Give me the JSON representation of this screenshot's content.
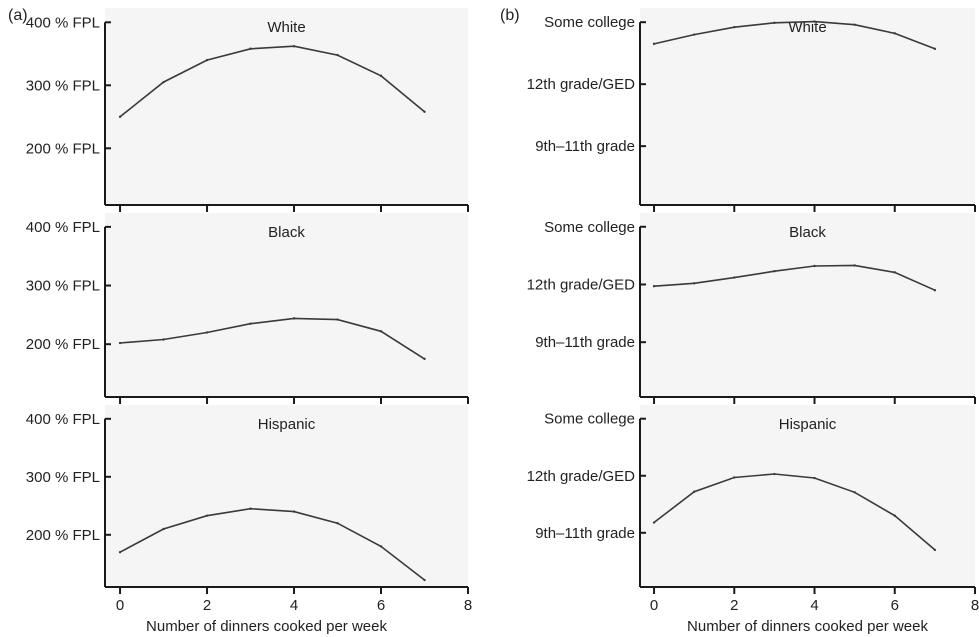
{
  "figure": {
    "panel_labels": [
      "(a)",
      "(b)"
    ],
    "xlabel": "Number of dinners cooked per week"
  },
  "chart_data": [
    {
      "type": "line",
      "panel": "(a)",
      "title": "White",
      "xlabel": "",
      "x": [
        0,
        1,
        2,
        3,
        4,
        5,
        6,
        7
      ],
      "series": [
        {
          "values": [
            250,
            305,
            340,
            358,
            362,
            348,
            315,
            258
          ]
        }
      ],
      "yticks": [
        200,
        300,
        400
      ],
      "yticklabels": [
        "200 % FPL",
        "300 % FPL",
        "400 % FPL"
      ],
      "xticks": [
        0,
        2,
        4,
        6,
        8
      ],
      "xticklabels": [
        "",
        "",
        "",
        "",
        ""
      ],
      "ylim": [
        110,
        410
      ],
      "xlim": [
        -0.3,
        8
      ]
    },
    {
      "type": "line",
      "panel": "(a)",
      "title": "Black",
      "xlabel": "",
      "x": [
        0,
        1,
        2,
        3,
        4,
        5,
        6,
        7
      ],
      "series": [
        {
          "values": [
            202,
            208,
            220,
            235,
            244,
            242,
            222,
            175
          ]
        }
      ],
      "yticks": [
        200,
        300,
        400
      ],
      "yticklabels": [
        "200 % FPL",
        "300 % FPL",
        "400 % FPL"
      ],
      "xticks": [
        0,
        2,
        4,
        6,
        8
      ],
      "xticklabels": [
        "",
        "",
        "",
        "",
        ""
      ],
      "ylim": [
        110,
        410
      ],
      "xlim": [
        -0.3,
        8
      ]
    },
    {
      "type": "line",
      "panel": "(a)",
      "title": "Hispanic",
      "xlabel": "Number of dinners cooked per week",
      "x": [
        0,
        1,
        2,
        3,
        4,
        5,
        6,
        7
      ],
      "series": [
        {
          "values": [
            170,
            210,
            233,
            245,
            240,
            220,
            180,
            122
          ]
        }
      ],
      "yticks": [
        200,
        300,
        400
      ],
      "yticklabels": [
        "200 % FPL",
        "300 % FPL",
        "400 % FPL"
      ],
      "xticks": [
        0,
        2,
        4,
        6,
        8
      ],
      "xticklabels": [
        "0",
        "2",
        "4",
        "6",
        "8"
      ],
      "ylim": [
        110,
        410
      ],
      "xlim": [
        -0.3,
        8
      ]
    },
    {
      "type": "line",
      "panel": "(b)",
      "title": "White",
      "xlabel": "",
      "x": [
        0,
        1,
        2,
        3,
        4,
        5,
        6,
        7
      ],
      "series": [
        {
          "values": [
            1.65,
            1.8,
            1.92,
            1.99,
            2.01,
            1.96,
            1.82,
            1.57
          ]
        }
      ],
      "yticks": [
        0,
        1,
        2
      ],
      "yticklabels": [
        "9th–11th grade",
        "12th grade/GED",
        "Some college"
      ],
      "xticks": [
        0,
        2,
        4,
        6,
        8
      ],
      "xticklabels": [
        "",
        "",
        "",
        "",
        ""
      ],
      "ylim": [
        -0.95,
        2.1
      ],
      "xlim": [
        -0.3,
        8
      ]
    },
    {
      "type": "line",
      "panel": "(b)",
      "title": "Black",
      "xlabel": "",
      "x": [
        0,
        1,
        2,
        3,
        4,
        5,
        6,
        7
      ],
      "series": [
        {
          "values": [
            0.97,
            1.02,
            1.12,
            1.23,
            1.32,
            1.33,
            1.21,
            0.9
          ]
        }
      ],
      "yticks": [
        0,
        1,
        2
      ],
      "yticklabels": [
        "9th–11th grade",
        "12th grade/GED",
        "Some college"
      ],
      "xticks": [
        0,
        2,
        4,
        6,
        8
      ],
      "xticklabels": [
        "",
        "",
        "",
        "",
        ""
      ],
      "ylim": [
        -0.95,
        2.1
      ],
      "xlim": [
        -0.3,
        8
      ]
    },
    {
      "type": "line",
      "panel": "(b)",
      "title": "Hispanic",
      "xlabel": "Number of dinners cooked per week",
      "x": [
        0,
        1,
        2,
        3,
        4,
        5,
        6,
        7
      ],
      "series": [
        {
          "values": [
            0.18,
            0.72,
            0.97,
            1.03,
            0.96,
            0.71,
            0.3,
            -0.3
          ]
        }
      ],
      "yticks": [
        0,
        1,
        2
      ],
      "yticklabels": [
        "9th–11th grade",
        "12th grade/GED",
        "Some college"
      ],
      "xticks": [
        0,
        2,
        4,
        6,
        8
      ],
      "xticklabels": [
        "0",
        "2",
        "4",
        "6",
        "8"
      ],
      "ylim": [
        -0.95,
        2.1
      ],
      "xlim": [
        -0.3,
        8
      ]
    }
  ]
}
